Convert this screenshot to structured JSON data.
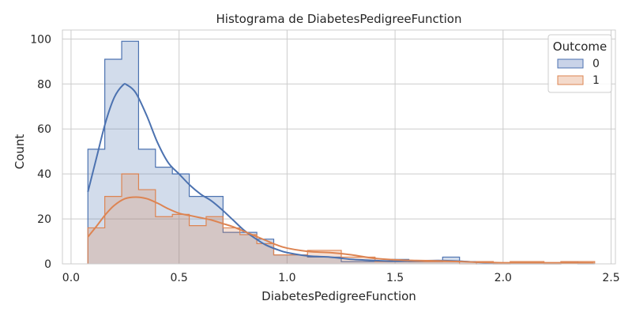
{
  "chart_data": {
    "type": "histogram",
    "title": "Histograma de DiabetesPedigreeFunction",
    "xlabel": "DiabetesPedigreeFunction",
    "ylabel": "Count",
    "xlim": [
      -0.04,
      2.52
    ],
    "ylim": [
      0,
      104
    ],
    "xticks": [
      0.0,
      0.5,
      1.0,
      1.5,
      2.0,
      2.5
    ],
    "xtick_labels": [
      "0.0",
      "0.5",
      "1.0",
      "1.5",
      "2.0",
      "2.5"
    ],
    "yticks": [
      0,
      20,
      40,
      60,
      80,
      100
    ],
    "ytick_labels": [
      "0",
      "20",
      "40",
      "60",
      "80",
      "100"
    ],
    "grid": true,
    "legend": {
      "title": "Outcome",
      "placement": "top-right"
    },
    "bin_edges": [
      0.078,
      0.1562,
      0.2344,
      0.3126,
      0.3908,
      0.469,
      0.5472,
      0.6254,
      0.7036,
      0.7818,
      0.86,
      0.9382,
      1.0164,
      1.0946,
      1.1728,
      1.251,
      1.3292,
      1.4074,
      1.4856,
      1.5638,
      1.642,
      1.7202,
      1.7984,
      1.8766,
      1.9548,
      2.033,
      2.1112,
      2.1894,
      2.2676,
      2.3458,
      2.424
    ],
    "series": [
      {
        "name": "0",
        "line_color": "#4c72b0",
        "fill_color": "#c9d3e8",
        "counts": [
          51,
          91,
          99,
          51,
          43,
          40,
          30,
          30,
          14,
          14,
          11,
          4,
          4,
          3,
          3,
          1,
          1,
          1,
          2,
          1,
          1,
          3,
          1,
          0,
          0,
          0,
          0,
          0,
          1,
          0
        ],
        "kde": [
          [
            0.078,
            32
          ],
          [
            0.12,
            48
          ],
          [
            0.16,
            63
          ],
          [
            0.2,
            74
          ],
          [
            0.24,
            79.5
          ],
          [
            0.26,
            79.5
          ],
          [
            0.3,
            76
          ],
          [
            0.35,
            66
          ],
          [
            0.4,
            54
          ],
          [
            0.45,
            45
          ],
          [
            0.5,
            40
          ],
          [
            0.55,
            35
          ],
          [
            0.6,
            31
          ],
          [
            0.65,
            28
          ],
          [
            0.7,
            24
          ],
          [
            0.75,
            19.5
          ],
          [
            0.8,
            15
          ],
          [
            0.85,
            11.5
          ],
          [
            0.9,
            8.5
          ],
          [
            0.95,
            6.5
          ],
          [
            1.0,
            5
          ],
          [
            1.1,
            3.5
          ],
          [
            1.2,
            3
          ],
          [
            1.3,
            2
          ],
          [
            1.4,
            1.5
          ],
          [
            1.5,
            1.2
          ],
          [
            1.6,
            1.3
          ],
          [
            1.7,
            1.5
          ],
          [
            1.8,
            1.2
          ],
          [
            1.9,
            0.6
          ],
          [
            2.0,
            0.3
          ],
          [
            2.2,
            0.2
          ],
          [
            2.42,
            0.2
          ]
        ]
      },
      {
        "name": "1",
        "line_color": "#dd8452",
        "fill_color": "#f4dacb",
        "counts": [
          16,
          30,
          40,
          33,
          21,
          22,
          17,
          21,
          16,
          13,
          9,
          4,
          4,
          6,
          6,
          3,
          3,
          1,
          1,
          1,
          1,
          1,
          0,
          1,
          0,
          1,
          1,
          0,
          1,
          1
        ],
        "kde": [
          [
            0.078,
            12
          ],
          [
            0.12,
            17
          ],
          [
            0.16,
            22
          ],
          [
            0.2,
            26
          ],
          [
            0.25,
            29
          ],
          [
            0.3,
            29.7
          ],
          [
            0.35,
            29
          ],
          [
            0.4,
            27
          ],
          [
            0.45,
            24.5
          ],
          [
            0.5,
            22.5
          ],
          [
            0.55,
            21.5
          ],
          [
            0.6,
            20.5
          ],
          [
            0.65,
            19.5
          ],
          [
            0.7,
            18
          ],
          [
            0.75,
            16.5
          ],
          [
            0.8,
            14.5
          ],
          [
            0.85,
            12.5
          ],
          [
            0.9,
            10.5
          ],
          [
            0.95,
            8.5
          ],
          [
            1.0,
            7
          ],
          [
            1.1,
            5.5
          ],
          [
            1.2,
            5
          ],
          [
            1.3,
            4
          ],
          [
            1.4,
            2.5
          ],
          [
            1.5,
            1.8
          ],
          [
            1.6,
            1.5
          ],
          [
            1.7,
            1.3
          ],
          [
            1.8,
            1
          ],
          [
            1.9,
            0.7
          ],
          [
            2.0,
            0.5
          ],
          [
            2.2,
            0.5
          ],
          [
            2.42,
            0.4
          ]
        ]
      }
    ]
  }
}
